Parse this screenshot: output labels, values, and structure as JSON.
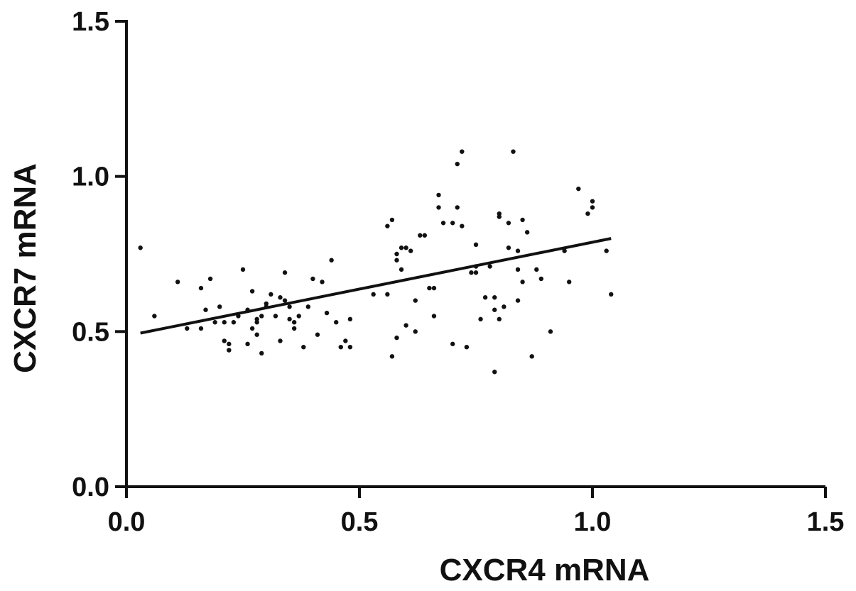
{
  "chart_data": {
    "type": "scatter",
    "xlabel": "CXCR4 mRNA",
    "ylabel": "CXCR7 mRNA",
    "xlim": [
      0,
      1.5
    ],
    "ylim": [
      0,
      1.5
    ],
    "x_ticks": [
      "0.0",
      "0.5",
      "1.0",
      "1.5"
    ],
    "y_ticks": [
      "0.0",
      "0.5",
      "1.0",
      "1.5"
    ],
    "grid": false,
    "colors": {
      "points": "#111111",
      "line": "#111111",
      "axes": "#111111"
    },
    "regression_line": {
      "x": [
        0.03,
        1.04
      ],
      "y": [
        0.495,
        0.8
      ]
    },
    "points": [
      {
        "x": 0.03,
        "y": 0.77
      },
      {
        "x": 0.06,
        "y": 0.55
      },
      {
        "x": 0.11,
        "y": 0.66
      },
      {
        "x": 0.13,
        "y": 0.51
      },
      {
        "x": 0.16,
        "y": 0.64
      },
      {
        "x": 0.16,
        "y": 0.51
      },
      {
        "x": 0.17,
        "y": 0.57
      },
      {
        "x": 0.18,
        "y": 0.67
      },
      {
        "x": 0.19,
        "y": 0.53
      },
      {
        "x": 0.2,
        "y": 0.58
      },
      {
        "x": 0.21,
        "y": 0.53
      },
      {
        "x": 0.21,
        "y": 0.47
      },
      {
        "x": 0.22,
        "y": 0.44
      },
      {
        "x": 0.22,
        "y": 0.46
      },
      {
        "x": 0.23,
        "y": 0.53
      },
      {
        "x": 0.24,
        "y": 0.55
      },
      {
        "x": 0.25,
        "y": 0.7
      },
      {
        "x": 0.26,
        "y": 0.57
      },
      {
        "x": 0.26,
        "y": 0.46
      },
      {
        "x": 0.27,
        "y": 0.63
      },
      {
        "x": 0.27,
        "y": 0.51
      },
      {
        "x": 0.28,
        "y": 0.54
      },
      {
        "x": 0.28,
        "y": 0.53
      },
      {
        "x": 0.28,
        "y": 0.49
      },
      {
        "x": 0.29,
        "y": 0.55
      },
      {
        "x": 0.29,
        "y": 0.43
      },
      {
        "x": 0.3,
        "y": 0.59
      },
      {
        "x": 0.3,
        "y": 0.58
      },
      {
        "x": 0.31,
        "y": 0.62
      },
      {
        "x": 0.32,
        "y": 0.55
      },
      {
        "x": 0.33,
        "y": 0.61
      },
      {
        "x": 0.33,
        "y": 0.47
      },
      {
        "x": 0.34,
        "y": 0.69
      },
      {
        "x": 0.34,
        "y": 0.6
      },
      {
        "x": 0.35,
        "y": 0.58
      },
      {
        "x": 0.35,
        "y": 0.54
      },
      {
        "x": 0.36,
        "y": 0.53
      },
      {
        "x": 0.36,
        "y": 0.51
      },
      {
        "x": 0.37,
        "y": 0.55
      },
      {
        "x": 0.38,
        "y": 0.45
      },
      {
        "x": 0.39,
        "y": 0.58
      },
      {
        "x": 0.4,
        "y": 0.67
      },
      {
        "x": 0.41,
        "y": 0.49
      },
      {
        "x": 0.42,
        "y": 0.66
      },
      {
        "x": 0.43,
        "y": 0.56
      },
      {
        "x": 0.44,
        "y": 0.73
      },
      {
        "x": 0.45,
        "y": 0.53
      },
      {
        "x": 0.46,
        "y": 0.45
      },
      {
        "x": 0.47,
        "y": 0.47
      },
      {
        "x": 0.48,
        "y": 0.54
      },
      {
        "x": 0.48,
        "y": 0.45
      },
      {
        "x": 0.53,
        "y": 0.62
      },
      {
        "x": 0.56,
        "y": 0.62
      },
      {
        "x": 0.56,
        "y": 0.84
      },
      {
        "x": 0.57,
        "y": 0.42
      },
      {
        "x": 0.57,
        "y": 0.86
      },
      {
        "x": 0.58,
        "y": 0.75
      },
      {
        "x": 0.58,
        "y": 0.73
      },
      {
        "x": 0.58,
        "y": 0.48
      },
      {
        "x": 0.59,
        "y": 0.77
      },
      {
        "x": 0.59,
        "y": 0.7
      },
      {
        "x": 0.6,
        "y": 0.77
      },
      {
        "x": 0.6,
        "y": 0.52
      },
      {
        "x": 0.61,
        "y": 0.76
      },
      {
        "x": 0.62,
        "y": 0.5
      },
      {
        "x": 0.62,
        "y": 0.6
      },
      {
        "x": 0.63,
        "y": 0.81
      },
      {
        "x": 0.64,
        "y": 0.81
      },
      {
        "x": 0.65,
        "y": 0.64
      },
      {
        "x": 0.66,
        "y": 0.55
      },
      {
        "x": 0.66,
        "y": 0.64
      },
      {
        "x": 0.67,
        "y": 0.9
      },
      {
        "x": 0.67,
        "y": 0.94
      },
      {
        "x": 0.68,
        "y": 0.85
      },
      {
        "x": 0.7,
        "y": 0.85
      },
      {
        "x": 0.7,
        "y": 0.46
      },
      {
        "x": 0.71,
        "y": 1.04
      },
      {
        "x": 0.71,
        "y": 0.9
      },
      {
        "x": 0.72,
        "y": 1.08
      },
      {
        "x": 0.72,
        "y": 0.84
      },
      {
        "x": 0.73,
        "y": 0.45
      },
      {
        "x": 0.74,
        "y": 0.69
      },
      {
        "x": 0.75,
        "y": 0.71
      },
      {
        "x": 0.75,
        "y": 0.78
      },
      {
        "x": 0.75,
        "y": 0.69
      },
      {
        "x": 0.76,
        "y": 0.54
      },
      {
        "x": 0.77,
        "y": 0.61
      },
      {
        "x": 0.78,
        "y": 0.71
      },
      {
        "x": 0.79,
        "y": 0.37
      },
      {
        "x": 0.79,
        "y": 0.57
      },
      {
        "x": 0.79,
        "y": 0.61
      },
      {
        "x": 0.8,
        "y": 0.87
      },
      {
        "x": 0.8,
        "y": 0.88
      },
      {
        "x": 0.8,
        "y": 0.54
      },
      {
        "x": 0.81,
        "y": 0.58
      },
      {
        "x": 0.82,
        "y": 0.77
      },
      {
        "x": 0.82,
        "y": 0.85
      },
      {
        "x": 0.83,
        "y": 1.08
      },
      {
        "x": 0.84,
        "y": 0.76
      },
      {
        "x": 0.84,
        "y": 0.6
      },
      {
        "x": 0.84,
        "y": 0.7
      },
      {
        "x": 0.85,
        "y": 0.86
      },
      {
        "x": 0.85,
        "y": 0.66
      },
      {
        "x": 0.86,
        "y": 0.82
      },
      {
        "x": 0.87,
        "y": 0.42
      },
      {
        "x": 0.88,
        "y": 0.7
      },
      {
        "x": 0.89,
        "y": 0.67
      },
      {
        "x": 0.91,
        "y": 0.5
      },
      {
        "x": 0.94,
        "y": 0.76
      },
      {
        "x": 0.95,
        "y": 0.66
      },
      {
        "x": 0.97,
        "y": 0.96
      },
      {
        "x": 0.99,
        "y": 0.88
      },
      {
        "x": 1.0,
        "y": 0.92
      },
      {
        "x": 1.0,
        "y": 0.9
      },
      {
        "x": 1.03,
        "y": 0.76
      },
      {
        "x": 1.04,
        "y": 0.62
      }
    ]
  }
}
